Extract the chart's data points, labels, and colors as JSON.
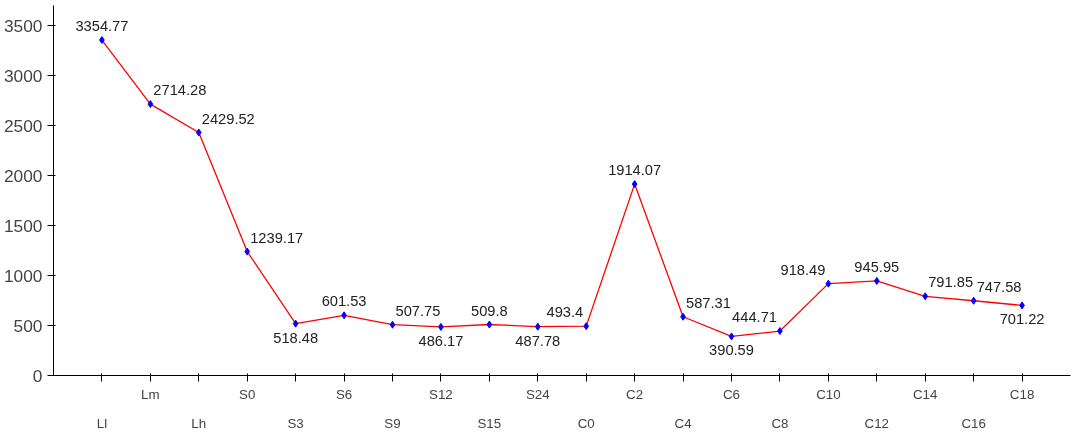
{
  "chart_data": {
    "type": "line",
    "categories": [
      "Ll",
      "Lm",
      "Lh",
      "S0",
      "S3",
      "S6",
      "S9",
      "S12",
      "S15",
      "S24",
      "C0",
      "C2",
      "C4",
      "C6",
      "C8",
      "C10",
      "C12",
      "C14",
      "C16",
      "C18"
    ],
    "series": [
      {
        "color": "#ff0000",
        "colors": [
          "#0000ff",
          "#0000ff",
          "#0000ff",
          "#0000ff",
          "#0000ff",
          "#0000ff",
          "#0000ff",
          "#0000ff",
          "#0000ff",
          "#0000ff",
          "#0000ff",
          "#0000ff",
          "#0000ff",
          "#0000ff",
          "#0000ff",
          "#0000ff",
          "#0000ff",
          "#0000ff",
          "#0000ff",
          "#0000ff"
        ],
        "values": [
          3354.77,
          2714.28,
          2429.52,
          1239.17,
          518.48,
          601.53,
          507.75,
          486.17,
          509.8,
          487.78,
          493.4,
          1914.07,
          587.31,
          390.59,
          444.71,
          918.49,
          945.95,
          791.85,
          747.58,
          701.22
        ]
      }
    ],
    "ylim": [
      0,
      3700
    ],
    "yticks": [
      0,
      500,
      1000,
      1500,
      2000,
      2500,
      3000,
      3500
    ],
    "grid": false,
    "marker": "diamond",
    "line_style": "solid",
    "data_labels": true
  }
}
